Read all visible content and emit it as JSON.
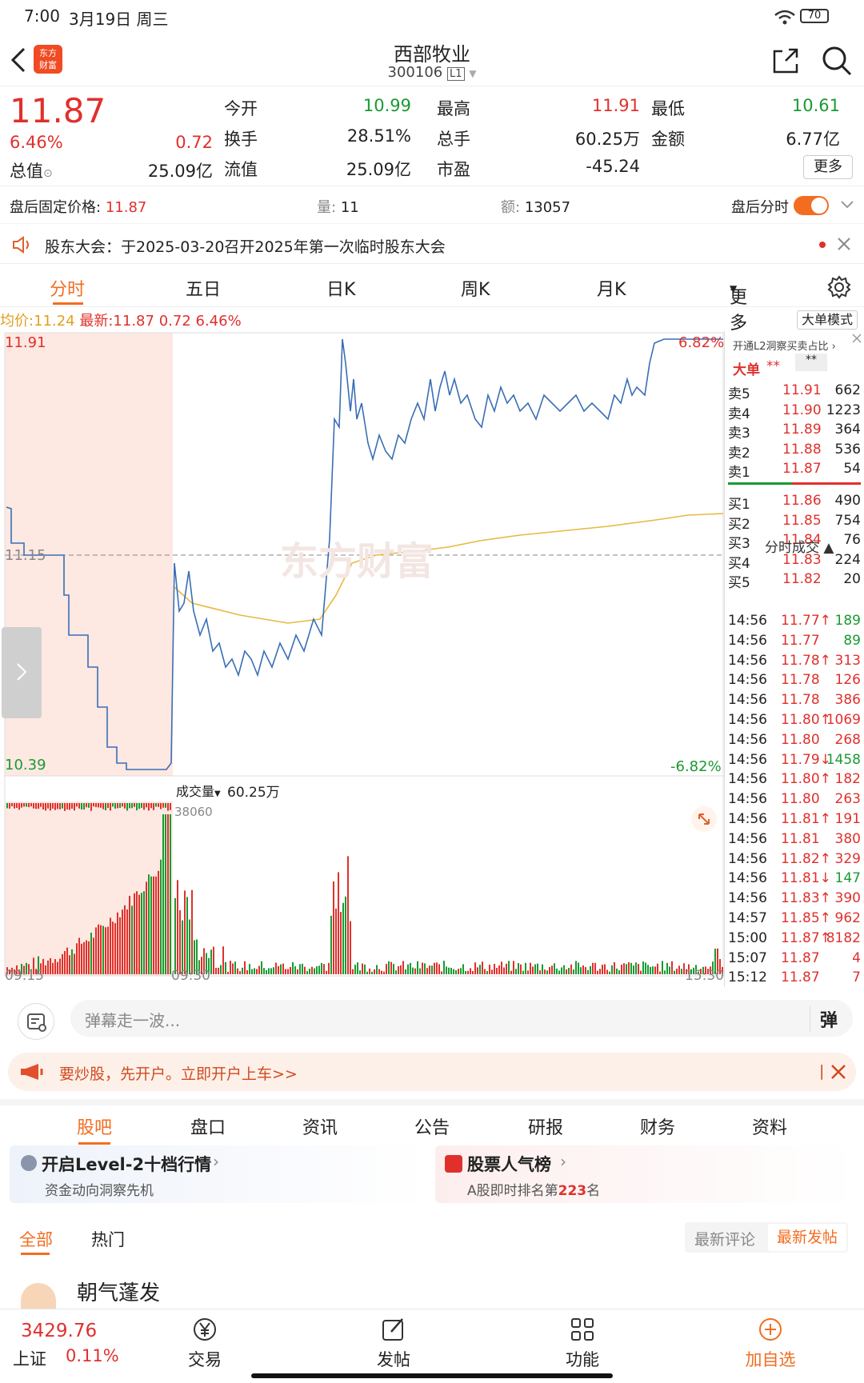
{
  "status": {
    "time": "7:00",
    "date": "3月19日 周三",
    "battery": "70"
  },
  "nav": {
    "logo_line1": "东方",
    "logo_line2": "财富",
    "title": "西部牧业",
    "code": "300106",
    "level": "L1"
  },
  "quote": {
    "price": "11.87",
    "pct": "6.46%",
    "change": "0.72",
    "zongzhi_label": "总值",
    "zongzhi": "25.09亿",
    "items": [
      {
        "label": "今开",
        "value": "10.99",
        "color": "green"
      },
      {
        "label": "最高",
        "value": "11.91",
        "color": "red"
      },
      {
        "label": "最低",
        "value": "10.61",
        "color": "green"
      },
      {
        "label": "换手",
        "value": "28.51%",
        "color": "dark"
      },
      {
        "label": "总手",
        "value": "60.25万",
        "color": "dark"
      },
      {
        "label": "金额",
        "value": "6.77亿",
        "color": "dark"
      },
      {
        "label": "流值",
        "value": "25.09亿",
        "color": "dark"
      },
      {
        "label": "市盈",
        "value": "-45.24",
        "color": "dark"
      }
    ],
    "more": "更多"
  },
  "afterhours": {
    "label": "盘后固定价格:",
    "price": "11.87",
    "vol_label": "量:",
    "vol": "11",
    "amt_label": "额:",
    "amt": "13057",
    "toggle_label": "盘后分时"
  },
  "notice": {
    "text": "股东大会：于2025-03-20召开2025年第一次临时股东大会"
  },
  "tabs": [
    "分时",
    "五日",
    "日K",
    "周K",
    "月K",
    "更多"
  ],
  "priceline": {
    "avg_label": "均价:",
    "avg": "11.24",
    "latest_label": "最新:",
    "latest": "11.87",
    "change": "0.72",
    "pct": "6.46%",
    "bigorder": "大单模式"
  },
  "chart": {
    "ymax": "11.91",
    "ymid": "11.15",
    "ymin": "10.39",
    "pmax": "6.82%",
    "pmin": "-6.82%",
    "vol_label": "成交量",
    "vol_total": "60.25万",
    "vol_peak": "38060",
    "t1": "09:15",
    "t2": "09:30",
    "t3": "15:30",
    "watermark": "东方财富"
  },
  "chart_data": {
    "type": "line",
    "x_range": [
      "09:15",
      "15:30"
    ],
    "ylim": [
      10.39,
      11.91
    ],
    "prev_close": 11.15
  },
  "book": {
    "header": "开通L2洞察买卖占比",
    "bigorder": "大单",
    "stars1": "**",
    "stars2": "**",
    "asks": [
      {
        "l": "卖5",
        "p": "11.91",
        "v": "662"
      },
      {
        "l": "卖4",
        "p": "11.90",
        "v": "1223"
      },
      {
        "l": "卖3",
        "p": "11.89",
        "v": "364"
      },
      {
        "l": "卖2",
        "p": "11.88",
        "v": "536"
      },
      {
        "l": "卖1",
        "p": "11.87",
        "v": "54"
      }
    ],
    "bids": [
      {
        "l": "买1",
        "p": "11.86",
        "v": "490"
      },
      {
        "l": "买2",
        "p": "11.85",
        "v": "754"
      },
      {
        "l": "买3",
        "p": "11.84",
        "v": "76"
      },
      {
        "l": "买4",
        "p": "11.83",
        "v": "224"
      },
      {
        "l": "买5",
        "p": "11.82",
        "v": "20"
      }
    ],
    "ticks_label": "分时成交",
    "ticks": [
      {
        "t": "14:56",
        "p": "11.77↑",
        "v": "189",
        "vc": "green"
      },
      {
        "t": "14:56",
        "p": "11.77",
        "v": "89",
        "vc": "green"
      },
      {
        "t": "14:56",
        "p": "11.78↑",
        "v": "313",
        "vc": "red"
      },
      {
        "t": "14:56",
        "p": "11.78",
        "v": "126",
        "vc": "red"
      },
      {
        "t": "14:56",
        "p": "11.78",
        "v": "386",
        "vc": "red"
      },
      {
        "t": "14:56",
        "p": "11.80↑",
        "v": "1069",
        "vc": "red"
      },
      {
        "t": "14:56",
        "p": "11.80",
        "v": "268",
        "vc": "red"
      },
      {
        "t": "14:56",
        "p": "11.79↓",
        "v": "1458",
        "vc": "green"
      },
      {
        "t": "14:56",
        "p": "11.80↑",
        "v": "182",
        "vc": "red"
      },
      {
        "t": "14:56",
        "p": "11.80",
        "v": "263",
        "vc": "red"
      },
      {
        "t": "14:56",
        "p": "11.81↑",
        "v": "191",
        "vc": "red"
      },
      {
        "t": "14:56",
        "p": "11.81",
        "v": "380",
        "vc": "red"
      },
      {
        "t": "14:56",
        "p": "11.82↑",
        "v": "329",
        "vc": "red"
      },
      {
        "t": "14:56",
        "p": "11.81↓",
        "v": "147",
        "vc": "green"
      },
      {
        "t": "14:56",
        "p": "11.83↑",
        "v": "390",
        "vc": "red"
      },
      {
        "t": "14:57",
        "p": "11.85↑",
        "v": "962",
        "vc": "red"
      },
      {
        "t": "15:00",
        "p": "11.87↑",
        "v": "8182",
        "vc": "red"
      },
      {
        "t": "15:07",
        "p": "11.87",
        "v": "4",
        "vc": "red"
      },
      {
        "t": "15:12",
        "p": "11.87",
        "v": "7",
        "vc": "red"
      }
    ]
  },
  "danmu": {
    "placeholder": "弹幕走一波...",
    "btn": "弹"
  },
  "banner": {
    "text": "要炒股，先开户。立即开户上车>>"
  },
  "tabs2": [
    "股吧",
    "盘口",
    "资讯",
    "公告",
    "研报",
    "财务",
    "资料"
  ],
  "cards": {
    "c1_title": "开启Level-2十档行情",
    "c1_sub": "资金动向洞察先机",
    "c2_title": "股票人气榜",
    "c2_sub_pre": "A股即时排名第",
    "c2_rank": "223",
    "c2_sub_post": "名"
  },
  "subtabs": {
    "all": "全部",
    "hot": "热门",
    "latest_comment": "最新评论",
    "latest_post": "最新发帖"
  },
  "post": {
    "author": "朝气蓬发"
  },
  "bottom": {
    "index": "3429.76",
    "index_name": "上证",
    "index_pct": "0.11%",
    "trade": "交易",
    "post": "发帖",
    "func": "功能",
    "add": "加自选"
  }
}
